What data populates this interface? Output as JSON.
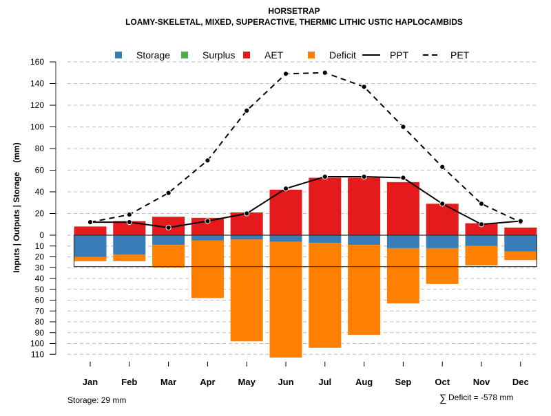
{
  "chart_data": {
    "type": "bar",
    "title": "HORSETRAP",
    "subtitle": "LOAMY-SKELETAL, MIXED, SUPERACTIVE, THERMIC LITHIC USTIC HAPLOCAMBIDS",
    "ylabel": "Inputs | Outputs | Storage    (mm)",
    "xlabel": "",
    "categories": [
      "Jan",
      "Feb",
      "Mar",
      "Apr",
      "May",
      "Jun",
      "Jul",
      "Aug",
      "Sep",
      "Oct",
      "Nov",
      "Dec"
    ],
    "yticks_top": [
      0,
      20,
      40,
      60,
      80,
      100,
      120,
      140,
      160
    ],
    "yticks_bottom": [
      10,
      20,
      30,
      40,
      50,
      60,
      70,
      80,
      90,
      100,
      110
    ],
    "ylim_top": [
      0,
      160
    ],
    "ylim_bottom": [
      0,
      110
    ],
    "grid": true,
    "legend_position": "top",
    "legend": [
      {
        "name": "Storage",
        "kind": "box",
        "color": "#377EB8"
      },
      {
        "name": "Surplus",
        "kind": "box",
        "color": "#4DAF4A"
      },
      {
        "name": "AET",
        "kind": "box",
        "color": "#E41A1C"
      },
      {
        "name": "Deficit",
        "kind": "box",
        "color": "#FF7F00"
      },
      {
        "name": "PPT",
        "kind": "solid-line",
        "color": "#000000"
      },
      {
        "name": "PET",
        "kind": "dashed-line",
        "color": "#000000"
      }
    ],
    "series": [
      {
        "name": "AET",
        "values": [
          8,
          13,
          17,
          16,
          21,
          42,
          53,
          53,
          49,
          29,
          11,
          7
        ]
      },
      {
        "name": "Surplus",
        "values": [
          0,
          0,
          0,
          0,
          0,
          0,
          0,
          0,
          0,
          0,
          0,
          0
        ]
      },
      {
        "name": "Storage",
        "values": [
          20,
          18,
          9,
          5,
          4,
          6,
          7,
          9,
          12,
          12,
          10,
          15
        ]
      },
      {
        "name": "Deficit",
        "values": [
          4,
          6,
          21,
          53,
          94,
          107,
          97,
          83,
          51,
          33,
          18,
          8
        ]
      },
      {
        "name": "PPT",
        "values": [
          12,
          12,
          7,
          13,
          20,
          43,
          54,
          54,
          53,
          29,
          10,
          13
        ]
      },
      {
        "name": "PET",
        "values": [
          12,
          19,
          39,
          69,
          115,
          149,
          150,
          137,
          100,
          63,
          29,
          12
        ]
      }
    ],
    "storage_capacity": 29,
    "annotations": {
      "storage": "Storage: 29 mm",
      "deficit_total": "Deficit = -578 mm",
      "sigma": "∑"
    }
  }
}
